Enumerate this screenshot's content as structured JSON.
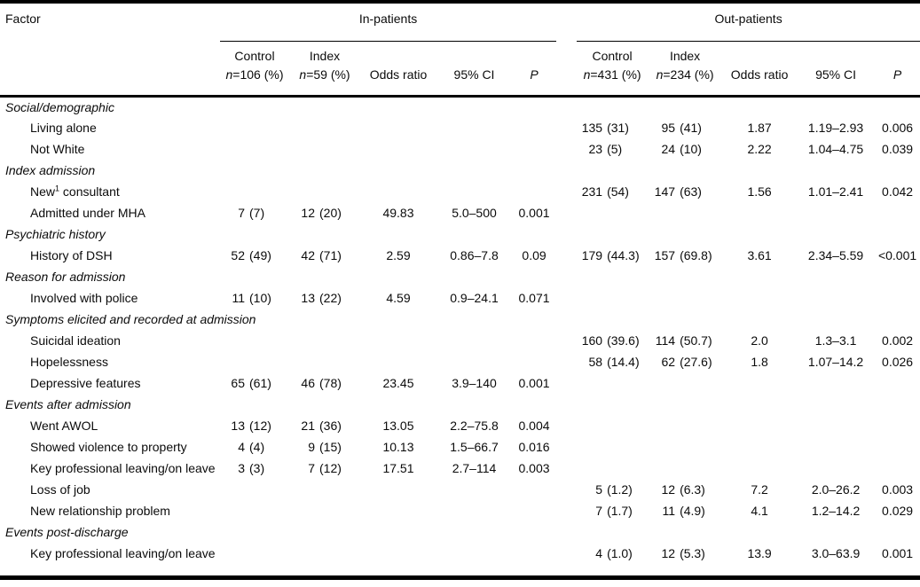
{
  "table": {
    "header": {
      "factor": "Factor",
      "inpatients": {
        "label": "In-patients",
        "control": "Control",
        "control_n_italic": "n",
        "control_n_rest": "=106 (%)",
        "index": "Index",
        "index_n_italic": "n",
        "index_n_rest": "=59 (%)",
        "odds": "Odds ratio",
        "ci": "95% CI",
        "p": "P"
      },
      "outpatients": {
        "label": "Out-patients",
        "control": "Control",
        "control_n_italic": "n",
        "control_n_rest": "=431 (%)",
        "index": "Index",
        "index_n_italic": "n",
        "index_n_rest": "=234 (%)",
        "odds": "Odds ratio",
        "ci": "95% CI",
        "p": "P"
      }
    },
    "rows": [
      {
        "type": "section",
        "label": "Social/demographic"
      },
      {
        "type": "item",
        "label": "Living alone",
        "out": {
          "c_n": "135",
          "c_pct": "(31)",
          "i_n": "95",
          "i_pct": "(41)",
          "or": "1.87",
          "ci": "1.19–2.93",
          "p": "0.006"
        }
      },
      {
        "type": "item",
        "label": "Not White",
        "out": {
          "c_n": "23",
          "c_pct": "(5)",
          "i_n": "24",
          "i_pct": "(10)",
          "or": "2.22",
          "ci": "1.04–4.75",
          "p": "0.039"
        }
      },
      {
        "type": "section",
        "label": "Index admission"
      },
      {
        "type": "item",
        "label": "New",
        "label_sup": "1",
        "label_rest": " consultant",
        "out": {
          "c_n": "231",
          "c_pct": "(54)",
          "i_n": "147",
          "i_pct": "(63)",
          "or": "1.56",
          "ci": "1.01–2.41",
          "p": "0.042"
        }
      },
      {
        "type": "item",
        "label": "Admitted under MHA",
        "inp": {
          "c_n": "7",
          "c_pct": "(7)",
          "i_n": "12",
          "i_pct": "(20)",
          "or": "49.83",
          "ci": "5.0–500",
          "p": "0.001"
        }
      },
      {
        "type": "section",
        "label": "Psychiatric history"
      },
      {
        "type": "item",
        "label": "History of DSH",
        "inp": {
          "c_n": "52",
          "c_pct": "(49)",
          "i_n": "42",
          "i_pct": "(71)",
          "or": "2.59",
          "ci": "0.86–7.8",
          "p": "0.09"
        },
        "out": {
          "c_n": "179",
          "c_pct": "(44.3)",
          "i_n": "157",
          "i_pct": "(69.8)",
          "or": "3.61",
          "ci": "2.34–5.59",
          "p": "<0.001"
        }
      },
      {
        "type": "section",
        "label": "Reason for admission"
      },
      {
        "type": "item",
        "label": "Involved with police",
        "inp": {
          "c_n": "11",
          "c_pct": "(10)",
          "i_n": "13",
          "i_pct": "(22)",
          "or": "4.59",
          "ci": "0.9–24.1",
          "p": "0.071"
        }
      },
      {
        "type": "section",
        "label": "Symptoms elicited and recorded at admission"
      },
      {
        "type": "item",
        "label": "Suicidal ideation",
        "out": {
          "c_n": "160",
          "c_pct": "(39.6)",
          "i_n": "114",
          "i_pct": "(50.7)",
          "or": "2.0",
          "ci": "1.3–3.1",
          "p": "0.002"
        }
      },
      {
        "type": "item",
        "label": "Hopelessness",
        "out": {
          "c_n": "58",
          "c_pct": "(14.4)",
          "i_n": "62",
          "i_pct": "(27.6)",
          "or": "1.8",
          "ci": "1.07–14.2",
          "p": "0.026"
        }
      },
      {
        "type": "item",
        "label": "Depressive features",
        "inp": {
          "c_n": "65",
          "c_pct": "(61)",
          "i_n": "46",
          "i_pct": "(78)",
          "or": "23.45",
          "ci": "3.9–140",
          "p": "0.001"
        }
      },
      {
        "type": "section",
        "label": "Events after admission"
      },
      {
        "type": "item",
        "label": "Went AWOL",
        "inp": {
          "c_n": "13",
          "c_pct": "(12)",
          "i_n": "21",
          "i_pct": "(36)",
          "or": "13.05",
          "ci": "2.2–75.8",
          "p": "0.004"
        }
      },
      {
        "type": "item",
        "label": "Showed violence to property",
        "inp": {
          "c_n": "4",
          "c_pct": "(4)",
          "i_n": "9",
          "i_pct": "(15)",
          "or": "10.13",
          "ci": "1.5–66.7",
          "p": "0.016"
        }
      },
      {
        "type": "item",
        "label": "Key professional leaving/on leave",
        "inp": {
          "c_n": "3",
          "c_pct": "(3)",
          "i_n": "7",
          "i_pct": "(12)",
          "or": "17.51",
          "ci": "2.7–114",
          "p": "0.003"
        }
      },
      {
        "type": "item",
        "label": "Loss of job",
        "out": {
          "c_n": "5",
          "c_pct": "(1.2)",
          "i_n": "12",
          "i_pct": "(6.3)",
          "or": "7.2",
          "ci": "2.0–26.2",
          "p": "0.003"
        }
      },
      {
        "type": "item",
        "label": "New relationship problem",
        "out": {
          "c_n": "7",
          "c_pct": "(1.7)",
          "i_n": "11",
          "i_pct": "(4.9)",
          "or": "4.1",
          "ci": "1.2–14.2",
          "p": "0.029"
        }
      },
      {
        "type": "section",
        "label": "Events post-discharge"
      },
      {
        "type": "item",
        "label": "Key professional leaving/on leave",
        "out": {
          "c_n": "4",
          "c_pct": "(1.0)",
          "i_n": "12",
          "i_pct": "(5.3)",
          "or": "13.9",
          "ci": "3.0–63.9",
          "p": "0.001"
        }
      }
    ]
  }
}
